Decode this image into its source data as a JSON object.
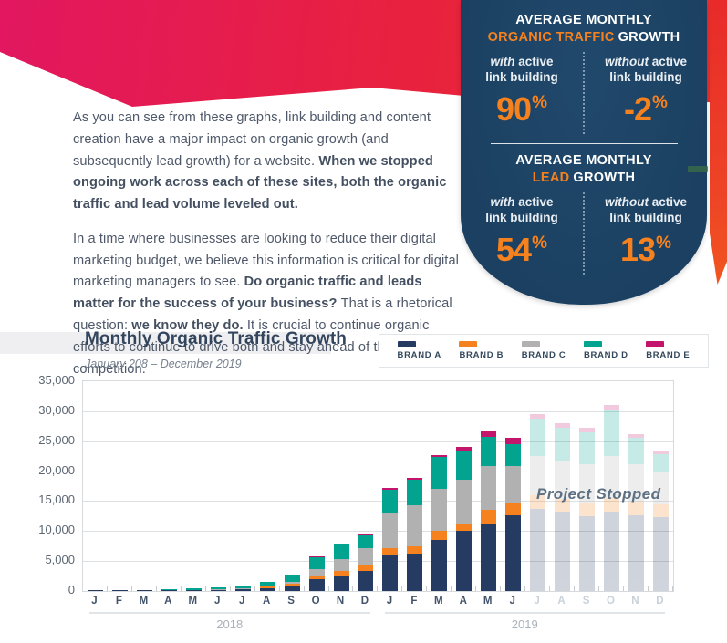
{
  "badge": {
    "bg": "#1D4466",
    "accent_color": "#F5821F",
    "sections": [
      {
        "title_line1": "AVERAGE MONTHLY",
        "title_accent": "ORGANIC TRAFFIC",
        "title_rest": "GROWTH",
        "columns": [
          {
            "qualifier": "with",
            "qualifier_rest": "active",
            "label_line2": "link building",
            "value": "90",
            "unit": "%"
          },
          {
            "qualifier": "without",
            "qualifier_rest": "active",
            "label_line2": "link building",
            "value": "-2",
            "unit": "%"
          }
        ]
      },
      {
        "title_line1": "AVERAGE MONTHLY",
        "title_accent": "LEAD",
        "title_rest": "GROWTH",
        "columns": [
          {
            "qualifier": "with",
            "qualifier_rest": "active",
            "label_line2": "link building",
            "value": "54",
            "unit": "%"
          },
          {
            "qualifier": "without",
            "qualifier_rest": "active",
            "label_line2": "link building",
            "value": "13",
            "unit": "%"
          }
        ]
      }
    ]
  },
  "paragraphs": [
    [
      {
        "t": "As you can see from these graphs, link building and content creation have a major impact on organic growth (and subsequently lead growth) for a website. ",
        "b": false
      },
      {
        "t": "When we stopped ongoing work across each of these sites, both the organic traffic and lead volume leveled out.",
        "b": true
      }
    ],
    [
      {
        "t": "In a time where businesses are looking to reduce their digital marketing budget, we believe this information is critical for digital marketing managers to see. ",
        "b": false
      },
      {
        "t": "Do organic traffic and leads matter for the success of your business? ",
        "b": true
      },
      {
        "t": "That is a rhetorical question: ",
        "b": false
      },
      {
        "t": "we know they do. ",
        "b": true
      },
      {
        "t": "It is crucial to continue organic efforts to continue to drive both and stay ahead of the competition.",
        "b": false
      }
    ]
  ],
  "chart_data": {
    "type": "bar",
    "stacked": true,
    "title": "Monthly Organic Traffic Growth",
    "subtitle": "January 208 – December 2019",
    "ylim": [
      0,
      35000
    ],
    "ytick_labels": [
      "35,000",
      "30,000",
      "25,000",
      "20,000",
      "15,000",
      "10,000",
      "5,000",
      "0"
    ],
    "grid": true,
    "legend_position": "top-right",
    "months": [
      "J",
      "F",
      "M",
      "A",
      "M",
      "J",
      "J",
      "A",
      "S",
      "O",
      "N",
      "D",
      "J",
      "F",
      "M",
      "A",
      "M",
      "J",
      "J",
      "A",
      "S",
      "O",
      "N",
      "D"
    ],
    "years": [
      {
        "label": "2018",
        "start": 0,
        "end": 11
      },
      {
        "label": "2019",
        "start": 12,
        "end": 23
      }
    ],
    "faded_from_index": 18,
    "annotation": "Project Stopped",
    "series": [
      {
        "name": "BRAND A",
        "color": "#253B62",
        "values": [
          120,
          120,
          120,
          100,
          130,
          170,
          260,
          450,
          950,
          2000,
          2600,
          3300,
          5900,
          6200,
          8600,
          10000,
          11300,
          12700,
          13700,
          13200,
          12500,
          13300,
          12700,
          12400
        ]
      },
      {
        "name": "BRAND B",
        "color": "#F5821F",
        "values": [
          20,
          20,
          30,
          30,
          40,
          60,
          120,
          280,
          320,
          550,
          700,
          1000,
          1200,
          1300,
          1500,
          1300,
          2200,
          1900,
          2300,
          2200,
          2300,
          2300,
          2200,
          2000
        ]
      },
      {
        "name": "BRAND C",
        "color": "#B1B1B1",
        "values": [
          20,
          20,
          30,
          40,
          50,
          70,
          150,
          250,
          300,
          1150,
          2100,
          2800,
          5900,
          6800,
          6900,
          7300,
          7300,
          6200,
          6500,
          6400,
          6300,
          7000,
          6200,
          5500
        ]
      },
      {
        "name": "BRAND D",
        "color": "#02A38F",
        "values": [
          30,
          30,
          40,
          130,
          230,
          290,
          280,
          620,
          1130,
          2000,
          2300,
          2200,
          3900,
          4200,
          5300,
          4900,
          4900,
          3700,
          6200,
          5400,
          5400,
          7700,
          4500,
          3000
        ]
      },
      {
        "name": "BRAND E",
        "color": "#C4156D",
        "values": [
          0,
          0,
          0,
          0,
          0,
          0,
          0,
          0,
          0,
          100,
          100,
          100,
          300,
          300,
          400,
          500,
          900,
          1000,
          800,
          800,
          800,
          700,
          600,
          400
        ]
      }
    ]
  }
}
